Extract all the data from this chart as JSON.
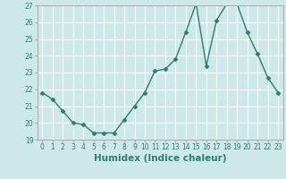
{
  "x": [
    0,
    1,
    2,
    3,
    4,
    5,
    6,
    7,
    8,
    9,
    10,
    11,
    12,
    13,
    14,
    15,
    16,
    17,
    18,
    19,
    20,
    21,
    22,
    23
  ],
  "y": [
    21.8,
    21.4,
    20.7,
    20.0,
    19.9,
    19.4,
    19.4,
    19.4,
    20.2,
    21.0,
    21.8,
    23.1,
    23.2,
    23.8,
    25.4,
    27.1,
    23.4,
    26.1,
    27.1,
    27.1,
    25.4,
    24.1,
    22.7,
    21.8
  ],
  "line_color": "#2e7d6e",
  "marker": "D",
  "marker_size": 2.5,
  "bg_color": "#cde8e8",
  "grid_color": "#ffffff",
  "xlabel": "Humidex (Indice chaleur)",
  "ylim": [
    19,
    27
  ],
  "xlim": [
    -0.5,
    23.5
  ],
  "yticks": [
    19,
    20,
    21,
    22,
    23,
    24,
    25,
    26,
    27
  ],
  "xticks": [
    0,
    1,
    2,
    3,
    4,
    5,
    6,
    7,
    8,
    9,
    10,
    11,
    12,
    13,
    14,
    15,
    16,
    17,
    18,
    19,
    20,
    21,
    22,
    23
  ],
  "tick_fontsize": 5.5,
  "label_fontsize": 7.5,
  "linewidth": 1.0
}
